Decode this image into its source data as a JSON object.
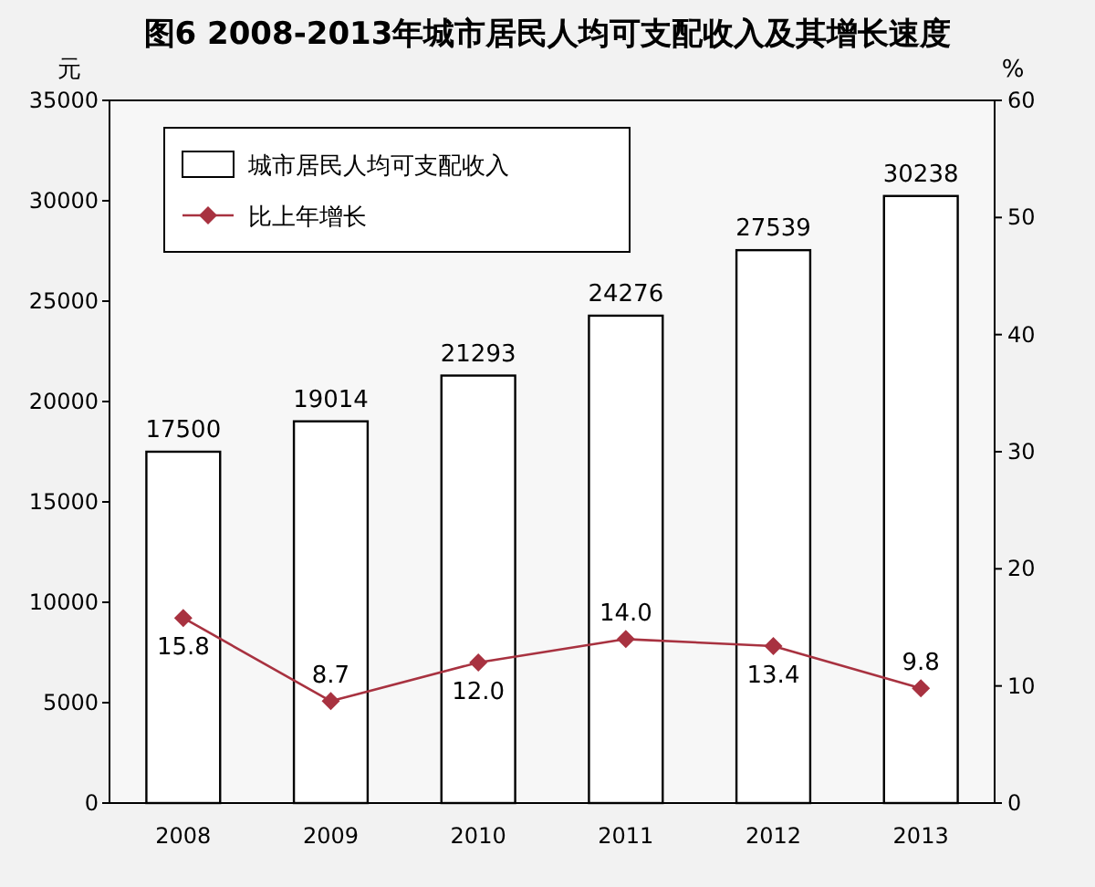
{
  "chart_data": {
    "type": "bar",
    "title": "图6 2008-2013年城市居民人均可支配收入及其增长速度",
    "ylabel": "元",
    "y2label": "%",
    "categories": [
      "2008",
      "2009",
      "2010",
      "2011",
      "2012",
      "2013"
    ],
    "series": [
      {
        "name": "城市居民人均可支配收入",
        "color": "#ffffff",
        "values": [
          17500,
          19014,
          21293,
          24276,
          27539,
          30238
        ]
      },
      {
        "name": "比上年增长",
        "type": "line",
        "axis": "y2",
        "color": "#a83240",
        "values": [
          15.8,
          8.7,
          12.0,
          14.0,
          13.4,
          9.8
        ],
        "value_labels": [
          "15.8",
          "8.7",
          "12.0",
          "14.0",
          "13.4",
          "9.8"
        ]
      }
    ],
    "ylim": [
      0,
      35000
    ],
    "yticks": [
      0,
      5000,
      10000,
      15000,
      20000,
      25000,
      30000,
      35000
    ],
    "y2lim": [
      0,
      60
    ],
    "y2ticks": [
      0,
      10,
      20,
      30,
      40,
      50,
      60
    ],
    "data_labels": true,
    "marker": "diamond",
    "legend": "top left",
    "grid": false
  }
}
